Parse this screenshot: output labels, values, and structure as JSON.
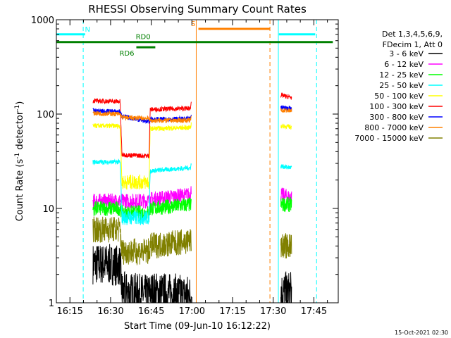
{
  "chart_data": {
    "type": "line",
    "title": "RHESSI Observing Summary Count Rates",
    "xlabel": "Start Time (09-Jun-10 16:12:22)",
    "ylabel_main": "Count Rate (s",
    "ylabel_sup": "-1",
    "ylabel_end": " detector",
    "ylabel_sup2": "-1",
    "ylabel_close": ")",
    "y_scale": "log",
    "ylim": [
      1,
      1000
    ],
    "xlim_minutes": [
      10,
      55
    ],
    "y_ticks": [
      {
        "value": 1,
        "label": "1"
      },
      {
        "value": 10,
        "label": "10"
      },
      {
        "value": 100,
        "label": "100"
      },
      {
        "value": 1000,
        "label": "1000"
      }
    ],
    "x_ticks": [
      {
        "minute": 15,
        "label": "16:15"
      },
      {
        "minute": 30,
        "label": "16:30"
      },
      {
        "minute": 45,
        "label": "16:45"
      },
      {
        "minute": 60,
        "label": "17:00"
      },
      {
        "minute": 75,
        "label": "17:15"
      },
      {
        "minute": 90,
        "label": "17:30"
      },
      {
        "minute": 105,
        "label": "17:45"
      }
    ],
    "legend_header": [
      "Det 1,3,4,5,6,9,",
      "FDecim 1, Att 0"
    ],
    "legend_placement": "right",
    "series": [
      {
        "name": "3 - 6 keV",
        "color": "#000000",
        "segments": [
          [
            [
              23.5,
              2.6
            ],
            [
              33.5,
              2.5
            ],
            [
              34.2,
              1.3
            ],
            [
              44.2,
              1.2
            ],
            [
              44.6,
              1.3
            ],
            [
              59.8,
              1.2
            ]
          ],
          [
            [
              92.8,
              1.3
            ],
            [
              96.8,
              1.3
            ]
          ]
        ]
      },
      {
        "name": "6 - 12 keV",
        "color": "#ff00ff",
        "segments": [
          [
            [
              23.5,
              12
            ],
            [
              33.5,
              12
            ],
            [
              34.2,
              12
            ],
            [
              44.2,
              12
            ],
            [
              44.6,
              12.5
            ],
            [
              59.5,
              14
            ],
            [
              59.8,
              16
            ]
          ],
          [
            [
              92.8,
              14
            ],
            [
              96.8,
              13
            ]
          ]
        ]
      },
      {
        "name": "12 - 25 keV",
        "color": "#00ff00",
        "segments": [
          [
            [
              23.5,
              10
            ],
            [
              33.5,
              10
            ],
            [
              34.2,
              9
            ],
            [
              44.2,
              9
            ],
            [
              44.6,
              10
            ],
            [
              59.8,
              11
            ]
          ],
          [
            [
              92.8,
              11
            ],
            [
              96.8,
              11
            ]
          ]
        ]
      },
      {
        "name": "25 - 50 keV",
        "color": "#00ffff",
        "segments": [
          [
            [
              23.5,
              31
            ],
            [
              33.5,
              31
            ],
            [
              34.2,
              8
            ],
            [
              44.2,
              8
            ],
            [
              44.6,
              25
            ],
            [
              59.5,
              27
            ],
            [
              59.8,
              30
            ]
          ],
          [
            [
              92.8,
              28
            ],
            [
              96.8,
              27
            ]
          ]
        ]
      },
      {
        "name": "50 - 100 keV",
        "color": "#ffff00",
        "segments": [
          [
            [
              23.5,
              75
            ],
            [
              33.5,
              75
            ],
            [
              34.2,
              19
            ],
            [
              44.2,
              19
            ],
            [
              44.6,
              70
            ],
            [
              59.5,
              72
            ],
            [
              59.8,
              80
            ]
          ],
          [
            [
              92.8,
              75
            ],
            [
              96.8,
              73
            ]
          ]
        ]
      },
      {
        "name": "100 - 300 keV",
        "color": "#ff0000",
        "segments": [
          [
            [
              23.5,
              138
            ],
            [
              33.5,
              136
            ],
            [
              34.2,
              37
            ],
            [
              44.2,
              36
            ],
            [
              44.6,
              112
            ],
            [
              59.5,
              115
            ],
            [
              59.8,
              145
            ]
          ],
          [
            [
              92.8,
              158
            ],
            [
              96.8,
              150
            ]
          ]
        ]
      },
      {
        "name": "300 - 800 keV",
        "color": "#0000ff",
        "segments": [
          [
            [
              23.5,
              108
            ],
            [
              33.5,
              106
            ],
            [
              34.2,
              95
            ],
            [
              44.2,
              83
            ],
            [
              44.6,
              88
            ],
            [
              59.5,
              89
            ],
            [
              59.8,
              103
            ]
          ],
          [
            [
              92.8,
              118
            ],
            [
              96.8,
              115
            ]
          ]
        ]
      },
      {
        "name": "800 - 7000 keV",
        "color": "#ff8000",
        "segments": [
          [
            [
              23.5,
              102
            ],
            [
              33.5,
              100
            ],
            [
              34.2,
              92
            ],
            [
              44.2,
              90
            ],
            [
              44.6,
              85
            ],
            [
              59.5,
              86
            ],
            [
              59.8,
              97
            ]
          ],
          [
            [
              92.8,
              110
            ],
            [
              96.8,
              108
            ]
          ]
        ]
      },
      {
        "name": "7000 - 15000 keV",
        "color": "#808000",
        "segments": [
          [
            [
              23.5,
              6
            ],
            [
              33.5,
              6
            ],
            [
              34.2,
              3.5
            ],
            [
              44.2,
              3.5
            ],
            [
              44.6,
              4
            ],
            [
              59.8,
              4.5
            ]
          ],
          [
            [
              92.8,
              4
            ],
            [
              96.8,
              4
            ]
          ]
        ]
      }
    ],
    "bars": [
      {
        "label": "N",
        "color": "#00ffff",
        "y_value": 700,
        "ranges": [
          [
            10,
            20.6
          ],
          [
            92.1,
            105.5
          ]
        ],
        "label_minute": 21.5
      },
      {
        "label": "S",
        "color": "#ff8000",
        "y_value": 800,
        "ranges": [
          [
            62.4,
            88.8
          ]
        ],
        "label_minute": 60.5
      },
      {
        "label": "RD6",
        "color": "#008000",
        "y_value": 510,
        "ranges": [
          [
            39.5,
            46.5
          ]
        ],
        "label_minute": 36
      },
      {
        "label": "RD0",
        "color": "#008000",
        "y_value": 580,
        "ranges": [
          [
            10,
            112
          ]
        ],
        "label_minute": 42
      }
    ],
    "vlines": [
      {
        "minute": 10.0,
        "color": "#00ffff",
        "dash": false
      },
      {
        "minute": 19.9,
        "color": "#00ffff",
        "dash": true
      },
      {
        "minute": 61.6,
        "color": "#ff8000",
        "dash": false
      },
      {
        "minute": 88.8,
        "color": "#ff8000",
        "dash": true
      },
      {
        "minute": 91.9,
        "color": "#00ffff",
        "dash": false
      },
      {
        "minute": 106.0,
        "color": "#00ffff",
        "dash": true
      }
    ],
    "footer_date": "15-Oct-2021 02:30"
  }
}
